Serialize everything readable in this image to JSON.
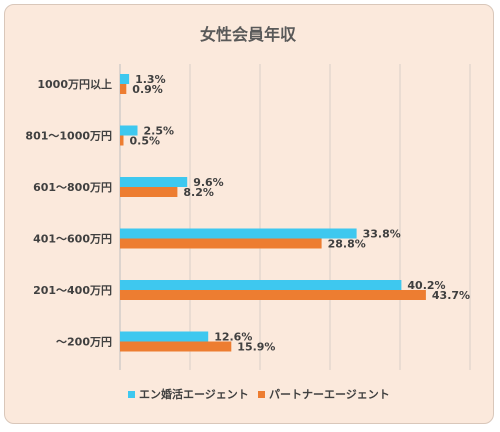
{
  "chart_data": {
    "type": "bar",
    "orientation": "horizontal",
    "title": "女性会員年収",
    "categories": [
      "1000万円以上",
      "801～1000万円",
      "601～800万円",
      "401～600万円",
      "201～400万円",
      "～200万円"
    ],
    "series": [
      {
        "name": "エン婚活エージェント",
        "color": "#3ec8ef",
        "values": [
          1.3,
          2.5,
          9.6,
          33.8,
          40.2,
          12.6
        ],
        "labels": [
          "1.3%",
          "2.5%",
          "9.6%",
          "33.8%",
          "40.2%",
          "12.6%"
        ]
      },
      {
        "name": "パートナーエージェント",
        "color": "#ed7d31",
        "values": [
          0.9,
          0.5,
          8.2,
          28.8,
          43.7,
          15.9
        ],
        "labels": [
          "0.9%",
          "0.5%",
          "8.2%",
          "28.8%",
          "43.7%",
          "15.9%"
        ]
      }
    ],
    "xlim": [
      0,
      50
    ],
    "grid": true,
    "legend_position": "bottom"
  }
}
